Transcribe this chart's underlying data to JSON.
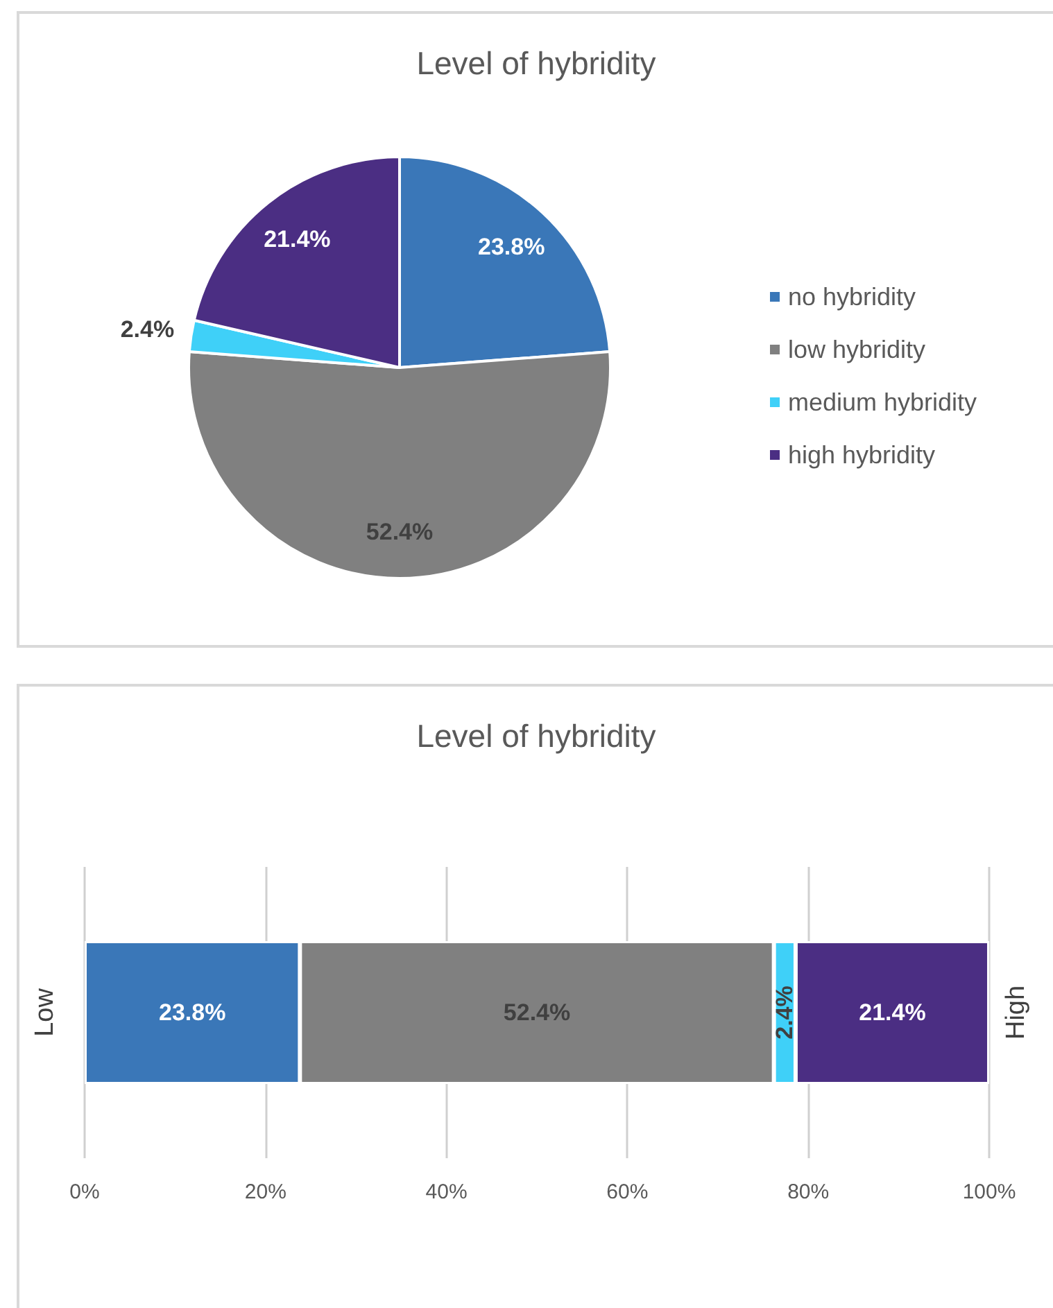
{
  "chart_data": [
    {
      "type": "pie",
      "title": "Level of hybridity",
      "categories": [
        "no hybridity",
        "low hybridity",
        "medium hybridity",
        "high hybridity"
      ],
      "values": [
        23.8,
        52.4,
        2.4,
        21.4
      ],
      "colors": [
        "#3a77b8",
        "#808080",
        "#3fd0f8",
        "#4b2e83"
      ],
      "value_labels": [
        "23.8%",
        "52.4%",
        "2.4%",
        "21.4%"
      ],
      "legend": "right"
    },
    {
      "type": "bar",
      "orientation": "horizontal",
      "stacked": true,
      "title": "Level of hybridity",
      "ylabel": "Low",
      "y2label": "High",
      "categories": [
        null
      ],
      "series": [
        {
          "color": "#3a77b8",
          "values": [
            23.8
          ],
          "value_labels": [
            "23.8%"
          ]
        },
        {
          "color": "#808080",
          "values": [
            52.4
          ],
          "value_labels": [
            "52.4%"
          ]
        },
        {
          "color": "#3fd0f8",
          "values": [
            2.4
          ],
          "value_labels": [
            "2.4%"
          ]
        },
        {
          "color": "#4b2e83",
          "values": [
            21.4
          ],
          "value_labels": [
            "21.4%"
          ]
        }
      ],
      "xlim": [
        0,
        100
      ],
      "xticks": [
        {
          "value": 0,
          "label": "0%"
        },
        {
          "value": 20,
          "label": "20%"
        },
        {
          "value": 40,
          "label": "40%"
        },
        {
          "value": 60,
          "label": "60%"
        },
        {
          "value": 80,
          "label": "80%"
        },
        {
          "value": 100,
          "label": "100%"
        }
      ],
      "grid": "x"
    }
  ]
}
